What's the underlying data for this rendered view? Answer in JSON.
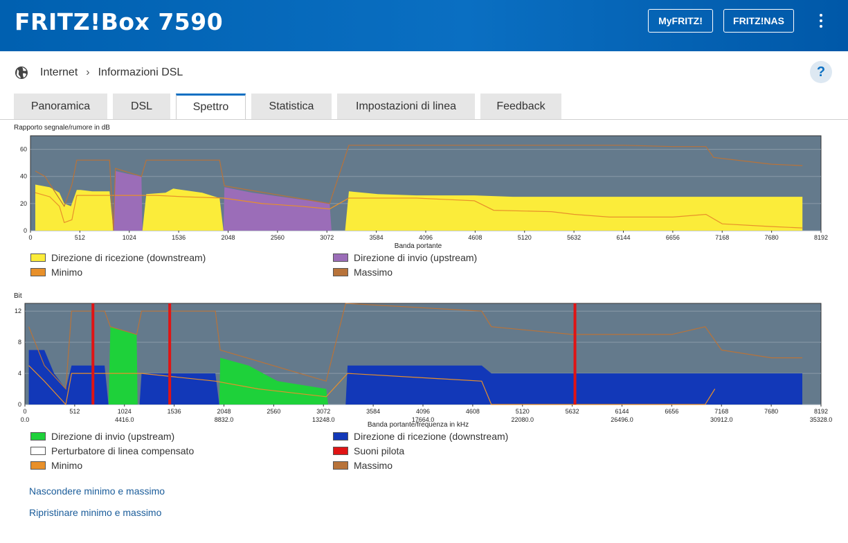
{
  "header": {
    "title": "FRITZ!Box 7590",
    "buttons": [
      "MyFRITZ!",
      "FRITZ!NAS"
    ]
  },
  "breadcrumb": {
    "items": [
      "Internet",
      "Informazioni DSL"
    ]
  },
  "help_label": "?",
  "tabs": [
    {
      "label": "Panoramica",
      "active": false
    },
    {
      "label": "DSL",
      "active": false
    },
    {
      "label": "Spettro",
      "active": true
    },
    {
      "label": "Statistica",
      "active": false
    },
    {
      "label": "Impostazioni di linea",
      "active": false
    },
    {
      "label": "Feedback",
      "active": false
    }
  ],
  "colors": {
    "plot_bg": "#647a8c",
    "downstream_snr": "#fbec3a",
    "upstream_snr": "#9b6db8",
    "min": "#e8902a",
    "max": "#b8733a",
    "upstream_bits": "#1ed13a",
    "downstream_bits": "#1238b8",
    "pilot": "#e01414",
    "accent": "#0a6fc2"
  },
  "chart_data": [
    {
      "type": "area",
      "title": "Rapporto segnale/rumore in dB",
      "xlabel": "Banda portante",
      "xlim": [
        0,
        8192
      ],
      "ylim": [
        0,
        70
      ],
      "xticks": [
        "0",
        "512",
        "1024",
        "1536",
        "2048",
        "2560",
        "3072",
        "3584",
        "4096",
        "4608",
        "5120",
        "5632",
        "6144",
        "6656",
        "7168",
        "7680",
        "8192"
      ],
      "yticks": [
        "0",
        "20",
        "40",
        "60"
      ],
      "series": [
        {
          "name": "Direzione di ricezione  (downstream)",
          "points": [
            [
              50,
              34
            ],
            [
              200,
              32
            ],
            [
              300,
              28
            ],
            [
              350,
              20
            ],
            [
              420,
              18
            ],
            [
              480,
              30
            ],
            [
              520,
              30
            ],
            [
              640,
              29
            ],
            [
              820,
              29
            ],
            [
              860,
              0
            ],
            [
              1160,
              0
            ],
            [
              1200,
              27
            ],
            [
              1400,
              28
            ],
            [
              1480,
              31
            ],
            [
              1780,
              28
            ],
            [
              1960,
              24
            ],
            [
              2000,
              0
            ],
            [
              3260,
              0
            ],
            [
              3300,
              29
            ],
            [
              3600,
              27
            ],
            [
              4000,
              26
            ],
            [
              4600,
              26
            ],
            [
              5000,
              25
            ],
            [
              5632,
              25
            ],
            [
              6144,
              25
            ],
            [
              6656,
              25
            ],
            [
              7168,
              25
            ],
            [
              7680,
              25
            ],
            [
              8000,
              25
            ],
            [
              8000,
              0
            ]
          ]
        },
        {
          "name": "Direzione di invio  (upstream)",
          "points": [
            [
              860,
              0
            ],
            [
              880,
              44
            ],
            [
              1000,
              42
            ],
            [
              1150,
              40
            ],
            [
              1160,
              0
            ],
            [
              2000,
              0
            ],
            [
              2010,
              32
            ],
            [
              2300,
              28
            ],
            [
              2600,
              25
            ],
            [
              2900,
              22
            ],
            [
              3100,
              20
            ],
            [
              3120,
              0
            ]
          ]
        },
        {
          "name": "Minimo",
          "points": [
            [
              50,
              28
            ],
            [
              200,
              25
            ],
            [
              300,
              18
            ],
            [
              350,
              6
            ],
            [
              430,
              8
            ],
            [
              480,
              26
            ],
            [
              700,
              26
            ],
            [
              1000,
              26
            ],
            [
              1300,
              26
            ],
            [
              1600,
              25
            ],
            [
              2000,
              24
            ],
            [
              2400,
              20
            ],
            [
              2800,
              18
            ],
            [
              3100,
              16
            ],
            [
              3300,
              24
            ],
            [
              4000,
              24
            ],
            [
              4600,
              22
            ],
            [
              4800,
              15
            ],
            [
              5400,
              14
            ],
            [
              5632,
              12
            ],
            [
              6000,
              10
            ],
            [
              6656,
              10
            ],
            [
              7000,
              12
            ],
            [
              7168,
              5
            ],
            [
              7680,
              3
            ],
            [
              8000,
              2
            ]
          ]
        },
        {
          "name": "Massimo",
          "points": [
            [
              50,
              44
            ],
            [
              150,
              40
            ],
            [
              350,
              18
            ],
            [
              430,
              34
            ],
            [
              480,
              52
            ],
            [
              820,
              52
            ],
            [
              860,
              0
            ],
            [
              880,
              46
            ],
            [
              1150,
              40
            ],
            [
              1200,
              52
            ],
            [
              1960,
              52
            ],
            [
              2010,
              33
            ],
            [
              3100,
              20
            ],
            [
              3300,
              63
            ],
            [
              6144,
              63
            ],
            [
              6656,
              62
            ],
            [
              7000,
              62
            ],
            [
              7080,
              54
            ],
            [
              7680,
              49
            ],
            [
              8000,
              48
            ]
          ]
        }
      ]
    },
    {
      "type": "area",
      "title": "Bit",
      "xlabel": "Banda portante/frequenza in kHz",
      "xlim": [
        0,
        8192
      ],
      "ylim": [
        0,
        13
      ],
      "xticks": [
        "0",
        "512",
        "1024",
        "1536",
        "2048",
        "2560",
        "3072",
        "3584",
        "4096",
        "4608",
        "5120",
        "5632",
        "6144",
        "6656",
        "7168",
        "7680",
        "8192"
      ],
      "xticks_khz": [
        "0.0",
        "4416.0",
        "8832.0",
        "13248.0",
        "17664.0",
        "22080.0",
        "26496.0",
        "30912.0",
        "35328.0"
      ],
      "yticks": [
        "0",
        "4",
        "8",
        "12"
      ],
      "series": [
        {
          "name": "Direzione di invio  (upstream)",
          "points": [
            [
              860,
              0
            ],
            [
              880,
              10
            ],
            [
              1150,
              9
            ],
            [
              1160,
              0
            ],
            [
              2000,
              0
            ],
            [
              2010,
              6
            ],
            [
              2300,
              5
            ],
            [
              2600,
              3
            ],
            [
              3100,
              2
            ],
            [
              3120,
              0
            ]
          ]
        },
        {
          "name": "Direzione di ricezione  (downstream)",
          "points": [
            [
              40,
              7
            ],
            [
              200,
              7
            ],
            [
              300,
              4
            ],
            [
              420,
              2
            ],
            [
              480,
              5
            ],
            [
              820,
              5
            ],
            [
              860,
              0
            ],
            [
              1180,
              0
            ],
            [
              1200,
              4
            ],
            [
              1960,
              4
            ],
            [
              2000,
              0
            ],
            [
              3300,
              0
            ],
            [
              3320,
              5
            ],
            [
              4700,
              5
            ],
            [
              4800,
              4
            ],
            [
              8000,
              4
            ],
            [
              8000,
              0
            ]
          ]
        },
        {
          "name": "Perturbatore di linea compensato",
          "points": []
        },
        {
          "name": "Suoni pilota",
          "x": [
            700,
            1490,
            5660
          ]
        },
        {
          "name": "Minimo",
          "points": [
            [
              40,
              5
            ],
            [
              200,
              3
            ],
            [
              420,
              0
            ],
            [
              480,
              4
            ],
            [
              820,
              4
            ],
            [
              1200,
              4
            ],
            [
              1960,
              3
            ],
            [
              2400,
              2
            ],
            [
              3100,
              1
            ],
            [
              3320,
              4
            ],
            [
              4700,
              3
            ],
            [
              4800,
              0
            ],
            [
              7000,
              0
            ],
            [
              7100,
              2
            ]
          ]
        },
        {
          "name": "Massimo",
          "points": [
            [
              40,
              10
            ],
            [
              200,
              5
            ],
            [
              420,
              2
            ],
            [
              480,
              12
            ],
            [
              820,
              12
            ],
            [
              880,
              10
            ],
            [
              1150,
              9
            ],
            [
              1200,
              12
            ],
            [
              1960,
              12
            ],
            [
              2010,
              7
            ],
            [
              3100,
              3
            ],
            [
              3300,
              13
            ],
            [
              4700,
              12
            ],
            [
              4800,
              10
            ],
            [
              5632,
              9
            ],
            [
              6656,
              9
            ],
            [
              7000,
              10
            ],
            [
              7168,
              7
            ],
            [
              7680,
              6
            ],
            [
              8000,
              6
            ]
          ]
        }
      ]
    }
  ],
  "legend1": [
    {
      "label": "Direzione di ricezione  (downstream)",
      "color": "#fbec3a"
    },
    {
      "label": "Direzione di invio  (upstream)",
      "color": "#9b6db8"
    },
    {
      "label": "Minimo",
      "color": "#e8902a"
    },
    {
      "label": "Massimo",
      "color": "#b8733a"
    }
  ],
  "legend2": [
    {
      "label": "Direzione di invio  (upstream)",
      "color": "#1ed13a"
    },
    {
      "label": "Direzione di ricezione  (downstream)",
      "color": "#1238b8"
    },
    {
      "label": "Perturbatore di linea compensato",
      "color": "#ffffff"
    },
    {
      "label": "Suoni pilota",
      "color": "#e01414"
    },
    {
      "label": "Minimo",
      "color": "#e8902a"
    },
    {
      "label": "Massimo",
      "color": "#b8733a"
    }
  ],
  "links": [
    "Nascondere minimo e massimo",
    "Ripristinare minimo e massimo"
  ]
}
